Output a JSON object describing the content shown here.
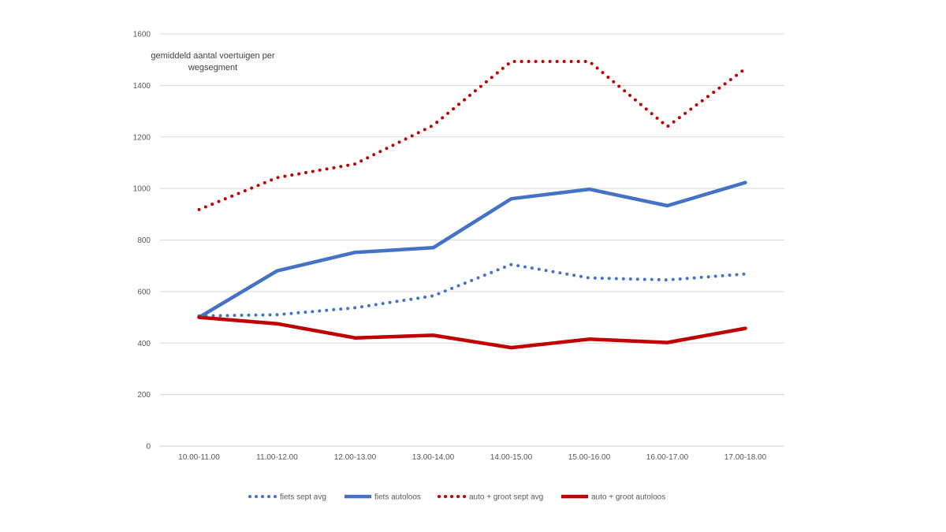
{
  "chart_data": {
    "type": "line",
    "title": "",
    "xlabel": "",
    "ylabel": "",
    "annotation": [
      "gemiddeld aantal voertuigen per",
      "wegsegment"
    ],
    "categories": [
      "10.00-11.00",
      "11.00-12.00",
      "12.00-13.00",
      "13.00-14.00",
      "14.00-15.00",
      "15.00-16.00",
      "16.00-17.00",
      "17.00-18.00"
    ],
    "ylim": [
      0,
      1600
    ],
    "yticks": [
      0,
      200,
      400,
      600,
      800,
      1000,
      1200,
      1400,
      1600
    ],
    "grid": true,
    "legend_position": "bottom",
    "series": [
      {
        "name": "fiets sept avg",
        "color": "#4472C4",
        "style": "dotted",
        "values": [
          505,
          510,
          537,
          583,
          705,
          653,
          645,
          668
        ]
      },
      {
        "name": "fiets autoloos",
        "color": "#4472C4",
        "style": "solid",
        "values": [
          500,
          680,
          752,
          770,
          960,
          997,
          933,
          1023
        ]
      },
      {
        "name": "auto + groot sept avg",
        "color": "#C00000",
        "style": "dotted",
        "values": [
          918,
          1042,
          1095,
          1245,
          1493,
          1493,
          1240,
          1465
        ]
      },
      {
        "name": "auto + groot autoloos",
        "color": "#C00000",
        "style": "solid",
        "values": [
          500,
          475,
          420,
          430,
          382,
          415,
          402,
          457
        ]
      }
    ]
  }
}
